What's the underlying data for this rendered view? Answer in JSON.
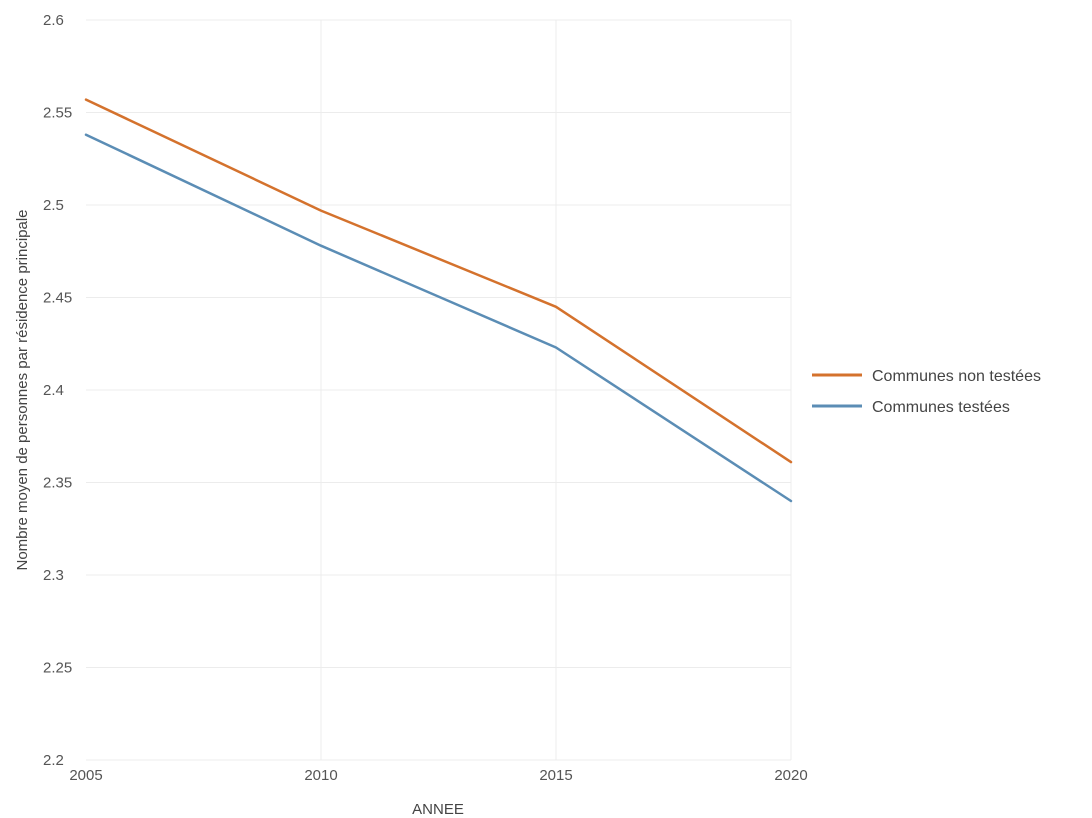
{
  "chart_data": {
    "type": "line",
    "title": "",
    "xlabel": "ANNEE",
    "ylabel": "Nombre moyen de personnes par résidence principale",
    "x": [
      2005,
      2010,
      2015,
      2020
    ],
    "xticks": [
      2005,
      2010,
      2015,
      2020
    ],
    "xtick_labels": [
      "2005",
      "2010",
      "2015",
      "2020"
    ],
    "xlim": [
      2005,
      2020
    ],
    "yticks": [
      2.2,
      2.25,
      2.3,
      2.35,
      2.4,
      2.45,
      2.5,
      2.55,
      2.6
    ],
    "ytick_labels": [
      "2.2",
      "2.25",
      "2.3",
      "2.35",
      "2.4",
      "2.45",
      "2.5",
      "2.55",
      "2.6"
    ],
    "ylim": [
      2.2,
      2.6
    ],
    "grid": true,
    "legend_position": "right",
    "series": [
      {
        "name": "Communes non testées",
        "color": "#d4722d",
        "values": [
          2.557,
          2.497,
          2.445,
          2.361
        ]
      },
      {
        "name": "Communes testées",
        "color": "#5b8db5",
        "values": [
          2.538,
          2.478,
          2.423,
          2.34
        ]
      }
    ]
  }
}
